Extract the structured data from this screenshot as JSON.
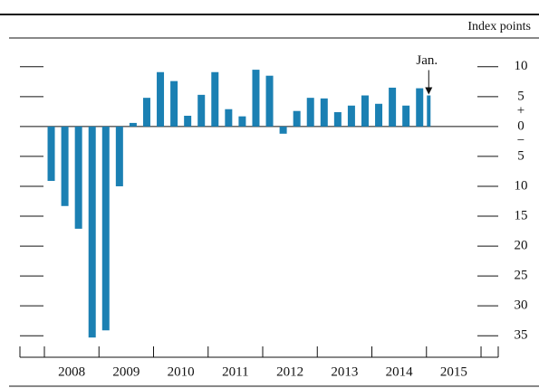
{
  "chart_data": {
    "type": "bar",
    "unit_label": "Index points",
    "annotation": "Jan.",
    "sign_labels": [
      "+",
      "−"
    ],
    "color": "#1b80b3",
    "categories": [
      "2008",
      "2009",
      "2010",
      "2011",
      "2012",
      "2013",
      "2014",
      "2015"
    ],
    "xticks": [
      2008,
      2009,
      2010,
      2011,
      2012,
      2013,
      2014,
      2015,
      2016
    ],
    "xlim": [
      2007.552,
      2016.315
    ],
    "x": [
      2008.125,
      2008.375,
      2008.625,
      2008.875,
      2009.125,
      2009.375,
      2009.625,
      2009.875,
      2010.125,
      2010.375,
      2010.625,
      2010.875,
      2011.125,
      2011.375,
      2011.625,
      2011.875,
      2012.125,
      2012.375,
      2012.625,
      2012.875,
      2013.125,
      2013.375,
      2013.625,
      2013.875,
      2014.125,
      2014.375,
      2014.625,
      2014.875,
      2015.0417
    ],
    "values": [
      -9.1,
      -13.3,
      -17.1,
      -35.3,
      -34.1,
      -10.0,
      0.6,
      4.8,
      9.1,
      7.6,
      1.8,
      5.3,
      9.1,
      2.9,
      1.7,
      9.5,
      8.5,
      -1.2,
      2.6,
      4.8,
      4.7,
      2.4,
      3.5,
      5.2,
      3.8,
      6.5,
      3.5,
      6.4,
      5.2
    ],
    "ylim": [
      -38.6,
      13.6
    ],
    "yticks": [
      10,
      5,
      0,
      {
        "value": -5,
        "label": "5"
      },
      {
        "value": -10,
        "label": "10"
      },
      {
        "value": -15,
        "label": "15"
      },
      {
        "value": -20,
        "label": "20"
      },
      {
        "value": -25,
        "label": "25"
      },
      {
        "value": -30,
        "label": "30"
      },
      {
        "value": -35,
        "label": "35"
      }
    ]
  }
}
